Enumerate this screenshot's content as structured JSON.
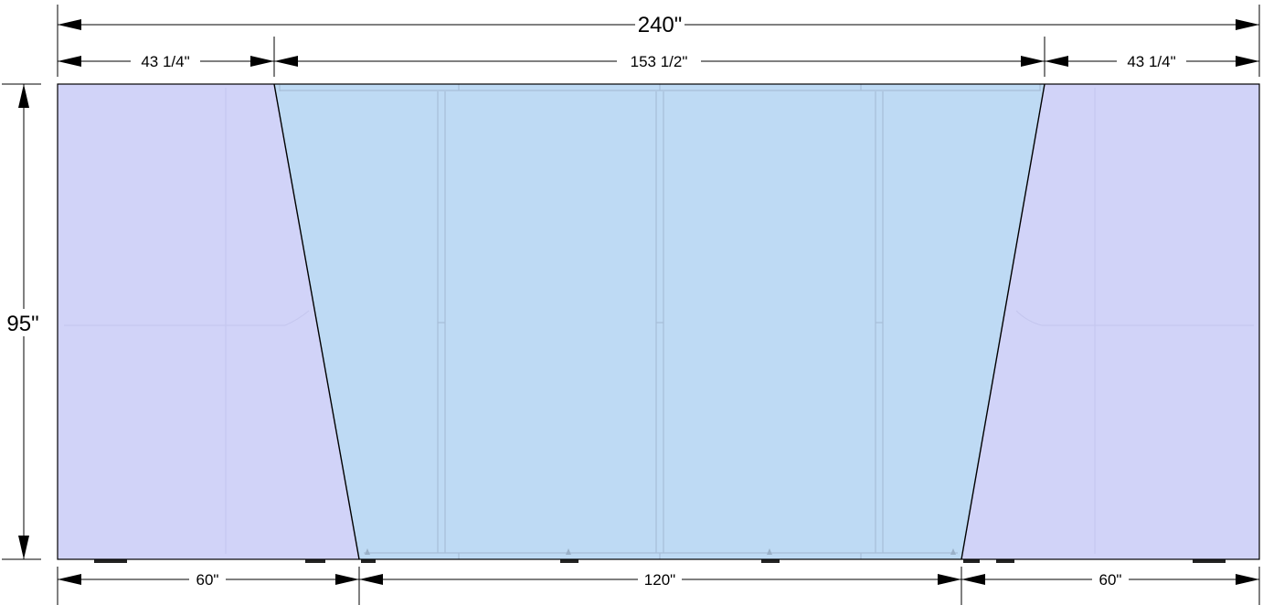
{
  "diagram": {
    "dimensions": {
      "overall_width": "240\"",
      "top_left_segment": "43 1/4\"",
      "top_center_segment": "153 1/2\"",
      "top_right_segment": "43 1/4\"",
      "height": "95\"",
      "bottom_left_segment": "60\"",
      "bottom_center_segment": "120\"",
      "bottom_right_segment": "60\""
    },
    "colors": {
      "side_panel_fill": "#d1d3f8",
      "center_panel_fill": "#bedaf4",
      "frame_line": "#a7bed8",
      "outline": "#000000"
    }
  }
}
